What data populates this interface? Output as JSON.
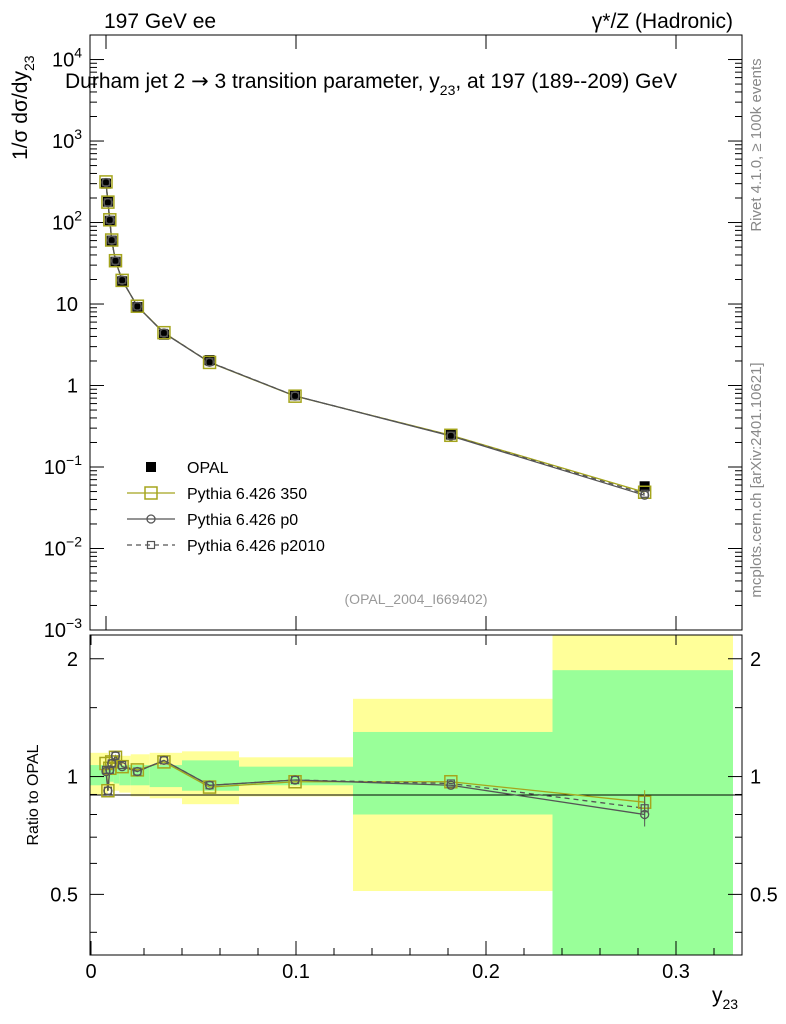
{
  "header": {
    "left": "197 GeV ee",
    "right": "γ*/Z (Hadronic)",
    "side_rivet": "Rivet 4.1.0, ≥ 100k events",
    "side_mcplots": "mcplots.cern.ch [arXiv:2401.10621]"
  },
  "chart_data": [
    {
      "type": "line",
      "panel": "main",
      "title_parts": [
        "Durham jet 2 ",
        "→",
        "  3 transition parameter, y",
        "23",
        ", at 197 (189--209) GeV"
      ],
      "ylabel_parts": [
        "1/σ  dσ/dy",
        "23"
      ],
      "watermark": "(OPAL_2004_I669402)",
      "yscale": "log",
      "ylim": [
        0.001,
        20000
      ],
      "xlim": [
        -0.001,
        0.335
      ],
      "yticks": [
        {
          "value": 10000,
          "base": "10",
          "exp": "4"
        },
        {
          "value": 1000,
          "base": "10",
          "exp": "3"
        },
        {
          "value": 100,
          "base": "10",
          "exp": "2"
        },
        {
          "value": 10,
          "base": "10",
          "exp": ""
        },
        {
          "value": 1,
          "base": "1",
          "exp": ""
        },
        {
          "value": 0.1,
          "base": "10",
          "exp": "−1"
        },
        {
          "value": 0.01,
          "base": "10",
          "exp": "−2"
        },
        {
          "value": 0.001,
          "base": "10",
          "exp": "−3"
        }
      ],
      "x": [
        0.0005,
        0.0015,
        0.0025,
        0.0035,
        0.0055,
        0.009,
        0.017,
        0.031,
        0.055,
        0.1,
        0.182,
        0.284
      ],
      "series": [
        {
          "name": "OPAL",
          "role": "data",
          "marker": "filled-square",
          "color": "#000000",
          "values": [
            300,
            180,
            105,
            60,
            33,
            19,
            9.2,
            4.2,
            2.05,
            0.76,
            0.25,
            0.058
          ]
        },
        {
          "name": "Pythia 6.426 350",
          "marker": "open-square-large",
          "color": "#a5a51d",
          "dash": "",
          "values": [
            315,
            178,
            108,
            61,
            34,
            19.5,
            9.4,
            4.45,
            1.92,
            0.74,
            0.245,
            0.049
          ]
        },
        {
          "name": "Pythia 6.426 p0",
          "marker": "open-circle",
          "color": "#555555",
          "dash": "",
          "values": [
            310,
            176,
            107,
            60.5,
            33.8,
            19.6,
            9.35,
            4.4,
            1.93,
            0.745,
            0.24,
            0.045
          ]
        },
        {
          "name": "Pythia 6.426 p2010",
          "marker": "open-square-small",
          "color": "#555555",
          "dash": "5,4",
          "values": [
            312,
            177,
            107.5,
            61,
            33.9,
            19.7,
            9.35,
            4.42,
            1.94,
            0.745,
            0.242,
            0.047
          ]
        }
      ]
    },
    {
      "type": "line",
      "panel": "ratio",
      "ylabel": "Ratio to OPAL",
      "xlabel_parts": [
        "y",
        "23"
      ],
      "ylim": [
        0.35,
        2.3
      ],
      "yticks": [
        {
          "value": 0.5,
          "label": "0.5"
        },
        {
          "value": 1,
          "label": "1"
        },
        {
          "value": 2,
          "label": "2"
        }
      ],
      "xticks": [
        {
          "value": 0,
          "label": "0"
        },
        {
          "value": 0.1,
          "label": "0.1"
        },
        {
          "value": 0.2,
          "label": "0.2"
        },
        {
          "value": 0.3,
          "label": "0.3"
        }
      ],
      "bands": [
        {
          "x0": 0.0,
          "x1": 0.001,
          "y_lo": 0.9,
          "y_hi": 1.15,
          "g_lo": 0.95,
          "g_hi": 1.07
        },
        {
          "x0": 0.001,
          "x1": 0.002,
          "y_lo": 0.92,
          "y_hi": 1.12,
          "g_lo": 0.96,
          "g_hi": 1.06
        },
        {
          "x0": 0.002,
          "x1": 0.004,
          "y_lo": 0.93,
          "y_hi": 1.1,
          "g_lo": 0.97,
          "g_hi": 1.05
        },
        {
          "x0": 0.004,
          "x1": 0.007,
          "y_lo": 0.92,
          "y_hi": 1.12,
          "g_lo": 0.96,
          "g_hi": 1.06
        },
        {
          "x0": 0.007,
          "x1": 0.013,
          "y_lo": 0.91,
          "y_hi": 1.13,
          "g_lo": 0.95,
          "g_hi": 1.07
        },
        {
          "x0": 0.013,
          "x1": 0.023,
          "y_lo": 0.89,
          "y_hi": 1.14,
          "g_lo": 0.95,
          "g_hi": 1.07
        },
        {
          "x0": 0.023,
          "x1": 0.04,
          "y_lo": 0.88,
          "y_hi": 1.15,
          "g_lo": 0.94,
          "g_hi": 1.07
        },
        {
          "x0": 0.04,
          "x1": 0.07,
          "y_lo": 0.85,
          "y_hi": 1.16,
          "g_lo": 0.92,
          "g_hi": 1.1
        },
        {
          "x0": 0.07,
          "x1": 0.13,
          "y_lo": 0.89,
          "y_hi": 1.12,
          "g_lo": 0.95,
          "g_hi": 1.06
        },
        {
          "x0": 0.13,
          "x1": 0.235,
          "y_lo": 0.51,
          "y_hi": 1.58,
          "g_lo": 0.8,
          "g_hi": 1.3
        },
        {
          "x0": 0.235,
          "x1": 0.33,
          "y_lo": 0.35,
          "y_hi": 2.3,
          "g_lo": 0.35,
          "g_hi": 1.87
        }
      ],
      "series": [
        {
          "name": "Pythia 6.426 350",
          "marker": "open-square-large",
          "color": "#a5a51d",
          "dash": "",
          "values": [
            1.08,
            0.92,
            1.05,
            1.09,
            1.12,
            1.06,
            1.04,
            1.09,
            0.94,
            0.97,
            0.97,
            0.86
          ]
        },
        {
          "name": "Pythia 6.426 p0",
          "marker": "open-circle",
          "color": "#555555",
          "dash": "",
          "values": [
            1.03,
            0.92,
            1.04,
            1.08,
            1.13,
            1.06,
            1.03,
            1.1,
            0.95,
            0.98,
            0.95,
            0.8
          ]
        },
        {
          "name": "Pythia 6.426 p2010",
          "marker": "open-square-small",
          "color": "#555555",
          "dash": "5,4",
          "values": [
            1.04,
            0.92,
            1.04,
            1.08,
            1.13,
            1.07,
            1.03,
            1.1,
            0.95,
            0.98,
            0.96,
            0.83
          ]
        }
      ]
    }
  ]
}
